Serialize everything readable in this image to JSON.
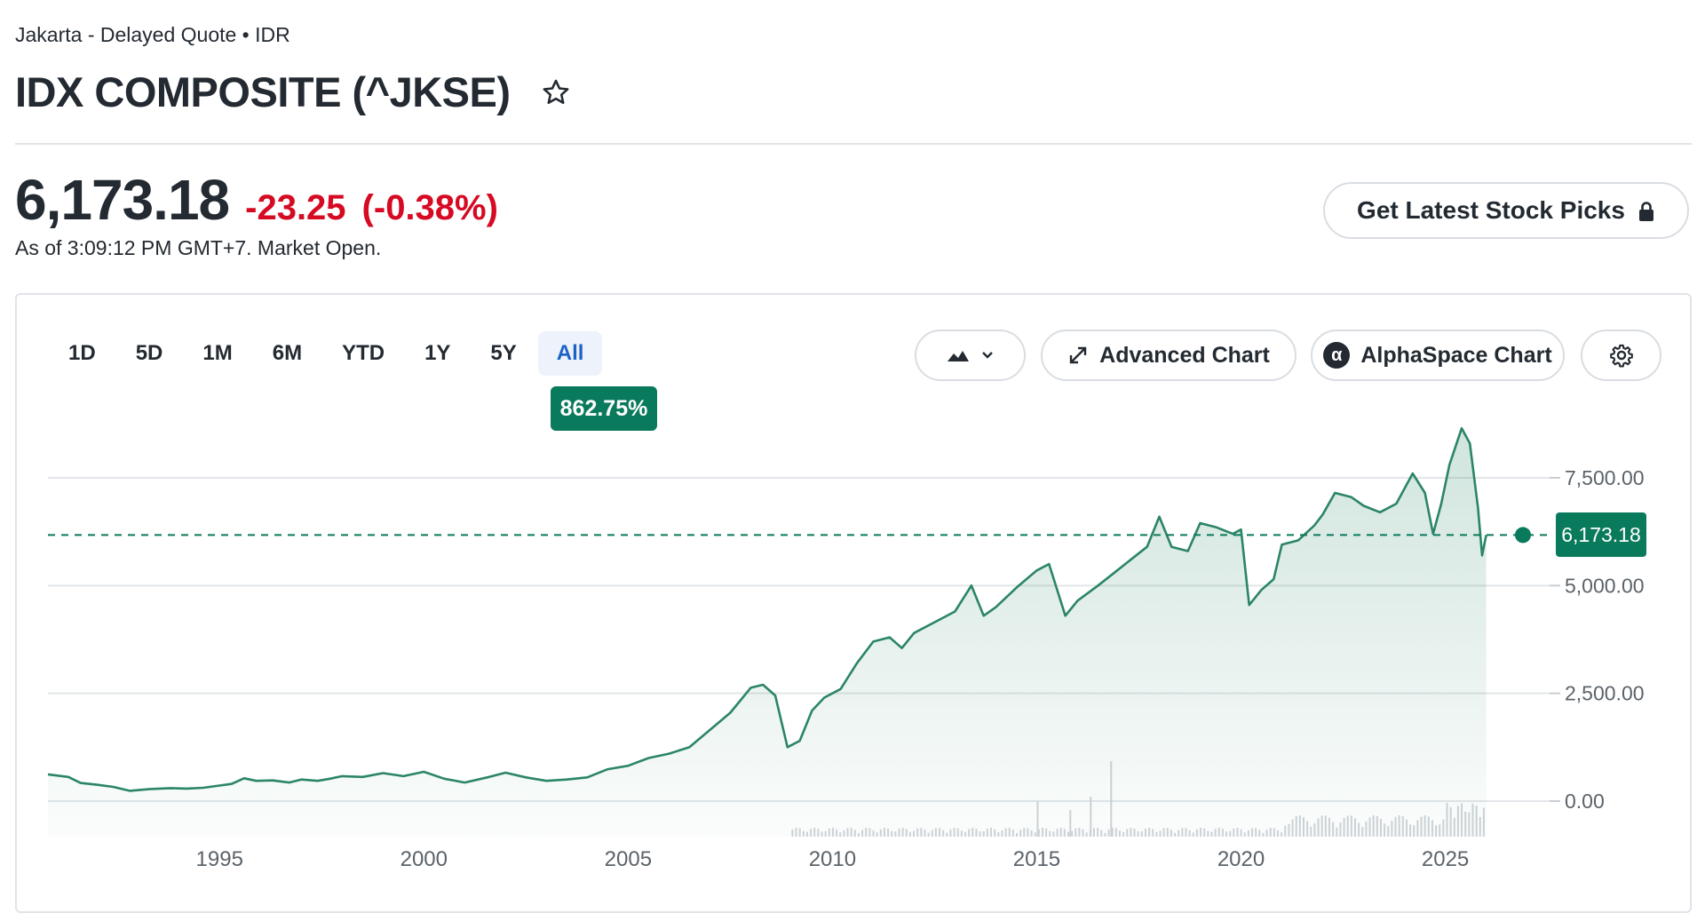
{
  "header": {
    "exchange_line": "Jakarta - Delayed Quote • IDR",
    "title": "IDX COMPOSITE (^JKSE)"
  },
  "quote": {
    "price": "6,173.18",
    "change": "-23.25",
    "change_pct": "(-0.38%)",
    "as_of": "As of 3:09:12 PM GMT+7. Market Open."
  },
  "picks_button": {
    "label": "Get Latest Stock Picks"
  },
  "ranges": [
    {
      "label": "1D"
    },
    {
      "label": "5D"
    },
    {
      "label": "1M"
    },
    {
      "label": "6M"
    },
    {
      "label": "YTD"
    },
    {
      "label": "1Y"
    },
    {
      "label": "5Y"
    },
    {
      "label": "All",
      "active": true
    }
  ],
  "range_badge": "862.75%",
  "toolbar": {
    "advanced_chart": "Advanced Chart",
    "alphaspace_chart": "AlphaSpace Chart",
    "alpha_symbol": "α"
  },
  "colors": {
    "line": "#2b8567",
    "down": "#d60a22",
    "accent": "#0a7a5c",
    "active_range": "#1b63c9"
  },
  "chart_data": {
    "type": "area",
    "title": "",
    "xlabel": "",
    "ylabel": "",
    "x_ticks": [
      "1995",
      "2000",
      "2005",
      "2010",
      "2015",
      "2020",
      "2025"
    ],
    "y_ticks": [
      "0.00",
      "2,500.00",
      "5,000.00",
      "7,500.00"
    ],
    "ylim": [
      -800,
      8700
    ],
    "xlim": [
      1990.8,
      2026.9
    ],
    "last_value": 6173.18,
    "last_value_label": "6,173.18",
    "grid": true,
    "series": [
      {
        "points": [
          [
            1990.8,
            620
          ],
          [
            1991.3,
            560
          ],
          [
            1991.6,
            420
          ],
          [
            1992.0,
            380
          ],
          [
            1992.4,
            330
          ],
          [
            1992.8,
            240
          ],
          [
            1993.3,
            280
          ],
          [
            1993.8,
            300
          ],
          [
            1994.2,
            290
          ],
          [
            1994.6,
            310
          ],
          [
            1995.0,
            360
          ],
          [
            1995.3,
            400
          ],
          [
            1995.6,
            530
          ],
          [
            1995.9,
            470
          ],
          [
            1996.3,
            480
          ],
          [
            1996.7,
            430
          ],
          [
            1997.0,
            500
          ],
          [
            1997.4,
            470
          ],
          [
            1997.7,
            520
          ],
          [
            1998.0,
            580
          ],
          [
            1998.5,
            560
          ],
          [
            1999.0,
            650
          ],
          [
            1999.5,
            580
          ],
          [
            2000.0,
            680
          ],
          [
            2000.5,
            520
          ],
          [
            2001.0,
            430
          ],
          [
            2001.6,
            560
          ],
          [
            2002.0,
            660
          ],
          [
            2002.5,
            550
          ],
          [
            2003.0,
            470
          ],
          [
            2003.5,
            500
          ],
          [
            2004.0,
            550
          ],
          [
            2004.5,
            740
          ],
          [
            2005.0,
            820
          ],
          [
            2005.5,
            1000
          ],
          [
            2006.0,
            1100
          ],
          [
            2006.5,
            1250
          ],
          [
            2007.0,
            1650
          ],
          [
            2007.5,
            2050
          ],
          [
            2008.0,
            2630
          ],
          [
            2008.3,
            2700
          ],
          [
            2008.6,
            2450
          ],
          [
            2008.9,
            1250
          ],
          [
            2009.2,
            1400
          ],
          [
            2009.5,
            2100
          ],
          [
            2009.8,
            2400
          ],
          [
            2010.2,
            2600
          ],
          [
            2010.6,
            3200
          ],
          [
            2011.0,
            3700
          ],
          [
            2011.4,
            3800
          ],
          [
            2011.7,
            3550
          ],
          [
            2012.0,
            3900
          ],
          [
            2012.5,
            4150
          ],
          [
            2013.0,
            4400
          ],
          [
            2013.4,
            5000
          ],
          [
            2013.7,
            4300
          ],
          [
            2014.0,
            4500
          ],
          [
            2014.5,
            4950
          ],
          [
            2015.0,
            5350
          ],
          [
            2015.3,
            5500
          ],
          [
            2015.7,
            4300
          ],
          [
            2016.0,
            4650
          ],
          [
            2016.5,
            5000
          ],
          [
            2016.9,
            5300
          ],
          [
            2017.3,
            5600
          ],
          [
            2017.7,
            5900
          ],
          [
            2018.0,
            6600
          ],
          [
            2018.3,
            5900
          ],
          [
            2018.7,
            5800
          ],
          [
            2019.0,
            6450
          ],
          [
            2019.4,
            6350
          ],
          [
            2019.8,
            6200
          ],
          [
            2020.0,
            6300
          ],
          [
            2020.2,
            4550
          ],
          [
            2020.5,
            4900
          ],
          [
            2020.8,
            5150
          ],
          [
            2021.0,
            5950
          ],
          [
            2021.4,
            6050
          ],
          [
            2021.8,
            6400
          ],
          [
            2022.0,
            6650
          ],
          [
            2022.3,
            7150
          ],
          [
            2022.7,
            7050
          ],
          [
            2023.0,
            6850
          ],
          [
            2023.4,
            6700
          ],
          [
            2023.8,
            6900
          ],
          [
            2024.0,
            7250
          ],
          [
            2024.2,
            7600
          ],
          [
            2024.5,
            7150
          ],
          [
            2024.7,
            6200
          ],
          [
            2024.9,
            6900
          ],
          [
            2025.1,
            7800
          ],
          [
            2025.4,
            8650
          ],
          [
            2025.6,
            8300
          ],
          [
            2025.8,
            6800
          ],
          [
            2025.9,
            5700
          ],
          [
            2026.0,
            6173.18
          ]
        ]
      }
    ]
  }
}
